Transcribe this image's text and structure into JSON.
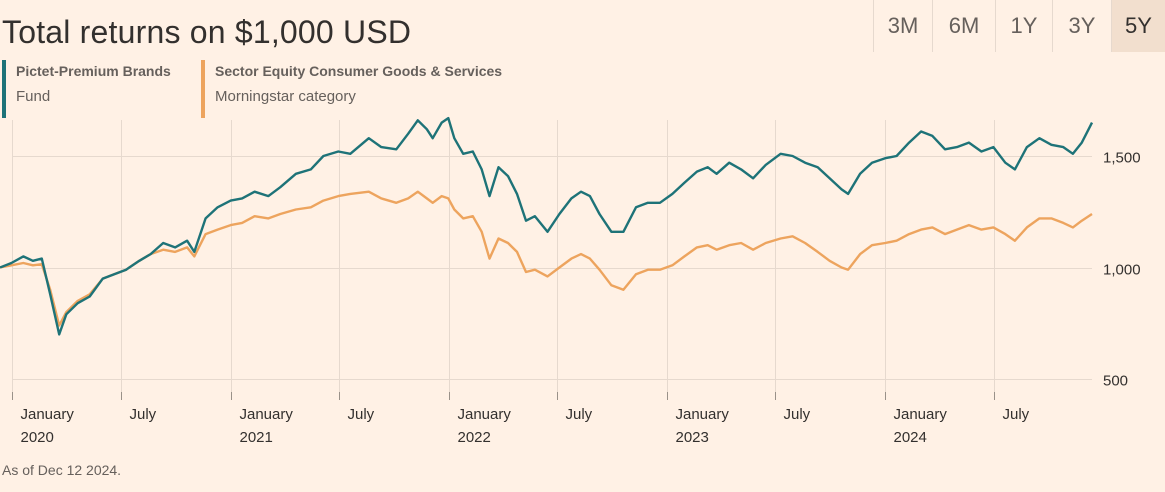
{
  "header": {
    "title": "Total returns on $1,000 USD"
  },
  "range_tabs": [
    {
      "label": "3M",
      "active": false
    },
    {
      "label": "6M",
      "active": false
    },
    {
      "label": "1Y",
      "active": false
    },
    {
      "label": "3Y",
      "active": false
    },
    {
      "label": "5Y",
      "active": true
    }
  ],
  "legend": [
    {
      "name": "Pictet-Premium Brands",
      "sub": "Fund",
      "color": "#1e7378"
    },
    {
      "name": "Sector Equity Consumer Goods & Services",
      "sub": "Morningstar category",
      "color": "#eda45e"
    }
  ],
  "footer": {
    "note": "As of Dec 12 2024."
  },
  "colors": {
    "background": "#fff1e5",
    "grid": "#e6d9ce",
    "fund": "#1e7378",
    "category": "#eda45e"
  },
  "chart_data": {
    "type": "line",
    "title": "Total returns on $1,000 USD",
    "xlim": [
      "2019-12-12",
      "2024-12-12"
    ],
    "ylim": [
      500,
      1700
    ],
    "grid": true,
    "legend_position": "top-left",
    "y_ticks": [
      {
        "value": 500,
        "label": "500"
      },
      {
        "value": 1000,
        "label": "1,000"
      },
      {
        "value": 1500,
        "label": "1,500"
      }
    ],
    "x_ticks": [
      {
        "date": "2020-01-01",
        "line1": "January",
        "line2": "2020"
      },
      {
        "date": "2020-07-01",
        "line1": "July",
        "line2": ""
      },
      {
        "date": "2021-01-01",
        "line1": "January",
        "line2": "2021"
      },
      {
        "date": "2021-07-01",
        "line1": "July",
        "line2": ""
      },
      {
        "date": "2022-01-01",
        "line1": "January",
        "line2": "2022"
      },
      {
        "date": "2022-07-01",
        "line1": "July",
        "line2": ""
      },
      {
        "date": "2023-01-01",
        "line1": "January",
        "line2": "2023"
      },
      {
        "date": "2023-07-01",
        "line1": "July",
        "line2": ""
      },
      {
        "date": "2024-01-01",
        "line1": "January",
        "line2": "2024"
      },
      {
        "date": "2024-07-01",
        "line1": "July",
        "line2": ""
      }
    ],
    "series": [
      {
        "name": "Pictet-Premium Brands",
        "color": "#1e7378",
        "points": [
          [
            "2019-12-12",
            1000
          ],
          [
            "2019-12-31",
            1020
          ],
          [
            "2020-01-20",
            1050
          ],
          [
            "2020-02-05",
            1030
          ],
          [
            "2020-02-20",
            1040
          ],
          [
            "2020-03-05",
            880
          ],
          [
            "2020-03-20",
            700
          ],
          [
            "2020-04-01",
            790
          ],
          [
            "2020-04-20",
            840
          ],
          [
            "2020-05-10",
            870
          ],
          [
            "2020-06-01",
            950
          ],
          [
            "2020-06-20",
            970
          ],
          [
            "2020-07-10",
            990
          ],
          [
            "2020-08-01",
            1030
          ],
          [
            "2020-08-20",
            1060
          ],
          [
            "2020-09-10",
            1110
          ],
          [
            "2020-09-30",
            1090
          ],
          [
            "2020-10-20",
            1120
          ],
          [
            "2020-11-01",
            1070
          ],
          [
            "2020-11-20",
            1220
          ],
          [
            "2020-12-10",
            1270
          ],
          [
            "2021-01-01",
            1300
          ],
          [
            "2021-01-20",
            1310
          ],
          [
            "2021-02-10",
            1340
          ],
          [
            "2021-03-05",
            1320
          ],
          [
            "2021-03-25",
            1360
          ],
          [
            "2021-04-20",
            1420
          ],
          [
            "2021-05-15",
            1440
          ],
          [
            "2021-06-05",
            1500
          ],
          [
            "2021-06-30",
            1520
          ],
          [
            "2021-07-20",
            1510
          ],
          [
            "2021-08-20",
            1580
          ],
          [
            "2021-09-10",
            1540
          ],
          [
            "2021-10-05",
            1530
          ],
          [
            "2021-10-25",
            1600
          ],
          [
            "2021-11-10",
            1660
          ],
          [
            "2021-11-25",
            1620
          ],
          [
            "2021-12-05",
            1580
          ],
          [
            "2021-12-20",
            1650
          ],
          [
            "2021-12-31",
            1670
          ],
          [
            "2022-01-10",
            1580
          ],
          [
            "2022-01-25",
            1510
          ],
          [
            "2022-02-10",
            1520
          ],
          [
            "2022-02-25",
            1440
          ],
          [
            "2022-03-10",
            1320
          ],
          [
            "2022-03-25",
            1450
          ],
          [
            "2022-04-10",
            1410
          ],
          [
            "2022-04-25",
            1330
          ],
          [
            "2022-05-10",
            1210
          ],
          [
            "2022-05-25",
            1230
          ],
          [
            "2022-06-15",
            1160
          ],
          [
            "2022-07-05",
            1240
          ],
          [
            "2022-07-25",
            1310
          ],
          [
            "2022-08-10",
            1340
          ],
          [
            "2022-08-25",
            1320
          ],
          [
            "2022-09-10",
            1240
          ],
          [
            "2022-09-30",
            1160
          ],
          [
            "2022-10-20",
            1160
          ],
          [
            "2022-11-10",
            1270
          ],
          [
            "2022-11-30",
            1290
          ],
          [
            "2022-12-20",
            1290
          ],
          [
            "2023-01-10",
            1330
          ],
          [
            "2023-01-30",
            1380
          ],
          [
            "2023-02-20",
            1430
          ],
          [
            "2023-03-10",
            1450
          ],
          [
            "2023-03-25",
            1420
          ],
          [
            "2023-04-15",
            1470
          ],
          [
            "2023-05-05",
            1440
          ],
          [
            "2023-05-25",
            1400
          ],
          [
            "2023-06-15",
            1460
          ],
          [
            "2023-07-10",
            1510
          ],
          [
            "2023-07-30",
            1500
          ],
          [
            "2023-08-20",
            1470
          ],
          [
            "2023-09-10",
            1450
          ],
          [
            "2023-09-30",
            1400
          ],
          [
            "2023-10-20",
            1350
          ],
          [
            "2023-10-31",
            1330
          ],
          [
            "2023-11-20",
            1420
          ],
          [
            "2023-12-10",
            1470
          ],
          [
            "2024-01-01",
            1490
          ],
          [
            "2024-01-20",
            1500
          ],
          [
            "2024-02-10",
            1560
          ],
          [
            "2024-03-01",
            1610
          ],
          [
            "2024-03-20",
            1590
          ],
          [
            "2024-04-10",
            1530
          ],
          [
            "2024-04-30",
            1540
          ],
          [
            "2024-05-20",
            1560
          ],
          [
            "2024-06-10",
            1520
          ],
          [
            "2024-06-30",
            1540
          ],
          [
            "2024-07-20",
            1470
          ],
          [
            "2024-08-05",
            1440
          ],
          [
            "2024-08-25",
            1540
          ],
          [
            "2024-09-15",
            1580
          ],
          [
            "2024-10-05",
            1550
          ],
          [
            "2024-10-25",
            1540
          ],
          [
            "2024-11-10",
            1510
          ],
          [
            "2024-11-25",
            1560
          ],
          [
            "2024-12-12",
            1650
          ]
        ]
      },
      {
        "name": "Sector Equity Consumer Goods & Services",
        "color": "#eda45e",
        "points": [
          [
            "2019-12-12",
            1000
          ],
          [
            "2019-12-31",
            1010
          ],
          [
            "2020-01-20",
            1020
          ],
          [
            "2020-02-05",
            1010
          ],
          [
            "2020-02-20",
            1015
          ],
          [
            "2020-03-05",
            900
          ],
          [
            "2020-03-20",
            740
          ],
          [
            "2020-04-01",
            800
          ],
          [
            "2020-04-20",
            850
          ],
          [
            "2020-05-10",
            880
          ],
          [
            "2020-06-01",
            950
          ],
          [
            "2020-06-20",
            970
          ],
          [
            "2020-07-10",
            990
          ],
          [
            "2020-08-01",
            1030
          ],
          [
            "2020-08-20",
            1060
          ],
          [
            "2020-09-10",
            1080
          ],
          [
            "2020-09-30",
            1070
          ],
          [
            "2020-10-20",
            1090
          ],
          [
            "2020-11-01",
            1050
          ],
          [
            "2020-11-20",
            1150
          ],
          [
            "2020-12-10",
            1170
          ],
          [
            "2021-01-01",
            1190
          ],
          [
            "2021-01-20",
            1200
          ],
          [
            "2021-02-10",
            1230
          ],
          [
            "2021-03-05",
            1220
          ],
          [
            "2021-03-25",
            1240
          ],
          [
            "2021-04-20",
            1260
          ],
          [
            "2021-05-15",
            1270
          ],
          [
            "2021-06-05",
            1300
          ],
          [
            "2021-06-30",
            1320
          ],
          [
            "2021-07-20",
            1330
          ],
          [
            "2021-08-20",
            1340
          ],
          [
            "2021-09-10",
            1310
          ],
          [
            "2021-10-05",
            1290
          ],
          [
            "2021-10-25",
            1310
          ],
          [
            "2021-11-10",
            1340
          ],
          [
            "2021-11-25",
            1310
          ],
          [
            "2021-12-05",
            1290
          ],
          [
            "2021-12-20",
            1320
          ],
          [
            "2021-12-31",
            1310
          ],
          [
            "2022-01-10",
            1260
          ],
          [
            "2022-01-25",
            1220
          ],
          [
            "2022-02-10",
            1230
          ],
          [
            "2022-02-25",
            1160
          ],
          [
            "2022-03-10",
            1040
          ],
          [
            "2022-03-25",
            1130
          ],
          [
            "2022-04-10",
            1110
          ],
          [
            "2022-04-25",
            1070
          ],
          [
            "2022-05-10",
            980
          ],
          [
            "2022-05-25",
            990
          ],
          [
            "2022-06-15",
            960
          ],
          [
            "2022-07-05",
            1000
          ],
          [
            "2022-07-25",
            1040
          ],
          [
            "2022-08-10",
            1060
          ],
          [
            "2022-08-25",
            1040
          ],
          [
            "2022-09-10",
            990
          ],
          [
            "2022-09-30",
            920
          ],
          [
            "2022-10-20",
            900
          ],
          [
            "2022-11-10",
            970
          ],
          [
            "2022-11-30",
            990
          ],
          [
            "2022-12-20",
            990
          ],
          [
            "2023-01-10",
            1010
          ],
          [
            "2023-01-30",
            1050
          ],
          [
            "2023-02-20",
            1090
          ],
          [
            "2023-03-10",
            1100
          ],
          [
            "2023-03-25",
            1080
          ],
          [
            "2023-04-15",
            1100
          ],
          [
            "2023-05-05",
            1110
          ],
          [
            "2023-05-25",
            1080
          ],
          [
            "2023-06-15",
            1110
          ],
          [
            "2023-07-10",
            1130
          ],
          [
            "2023-07-30",
            1140
          ],
          [
            "2023-08-20",
            1110
          ],
          [
            "2023-09-10",
            1070
          ],
          [
            "2023-09-30",
            1030
          ],
          [
            "2023-10-20",
            1000
          ],
          [
            "2023-10-31",
            990
          ],
          [
            "2023-11-20",
            1060
          ],
          [
            "2023-12-10",
            1100
          ],
          [
            "2024-01-01",
            1110
          ],
          [
            "2024-01-20",
            1120
          ],
          [
            "2024-02-10",
            1150
          ],
          [
            "2024-03-01",
            1170
          ],
          [
            "2024-03-20",
            1180
          ],
          [
            "2024-04-10",
            1150
          ],
          [
            "2024-04-30",
            1170
          ],
          [
            "2024-05-20",
            1190
          ],
          [
            "2024-06-10",
            1170
          ],
          [
            "2024-06-30",
            1180
          ],
          [
            "2024-07-20",
            1150
          ],
          [
            "2024-08-05",
            1120
          ],
          [
            "2024-08-25",
            1180
          ],
          [
            "2024-09-15",
            1220
          ],
          [
            "2024-10-05",
            1220
          ],
          [
            "2024-10-25",
            1200
          ],
          [
            "2024-11-10",
            1180
          ],
          [
            "2024-11-25",
            1210
          ],
          [
            "2024-12-12",
            1240
          ]
        ]
      }
    ]
  }
}
